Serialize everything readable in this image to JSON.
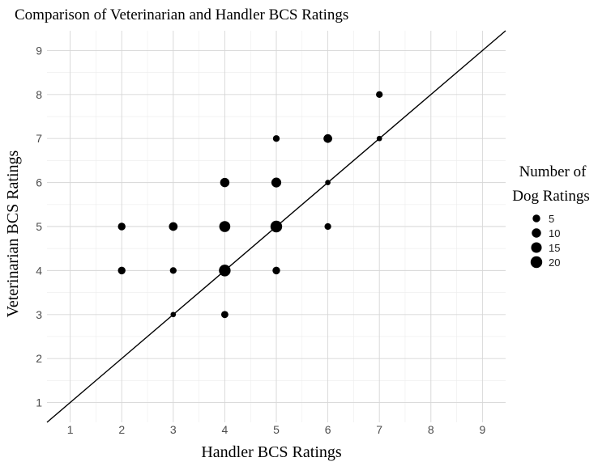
{
  "chart_data": {
    "type": "scatter",
    "title": "Comparison of Veterinarian and Handler BCS Ratings",
    "xlabel": "Handler BCS Ratings",
    "ylabel": "Veterinarian BCS Ratings",
    "xlim": [
      0.55,
      9.45
    ],
    "ylim": [
      0.55,
      9.45
    ],
    "xticks": [
      1,
      2,
      3,
      4,
      5,
      6,
      7,
      8,
      9
    ],
    "yticks": [
      1,
      2,
      3,
      4,
      5,
      6,
      7,
      8,
      9
    ],
    "grid": true,
    "reference_line": {
      "type": "identity",
      "slope": 1,
      "intercept": 0
    },
    "size_legend": {
      "title_lines": [
        "Number of",
        "Dog Ratings"
      ],
      "values": [
        5,
        10,
        15,
        20
      ],
      "placement": "right"
    },
    "points": [
      {
        "x": 2,
        "y": 4,
        "count": 5
      },
      {
        "x": 2,
        "y": 5,
        "count": 5
      },
      {
        "x": 3,
        "y": 3,
        "count": 1
      },
      {
        "x": 3,
        "y": 4,
        "count": 3
      },
      {
        "x": 3,
        "y": 5,
        "count": 8
      },
      {
        "x": 4,
        "y": 3,
        "count": 4
      },
      {
        "x": 4,
        "y": 4,
        "count": 20
      },
      {
        "x": 4,
        "y": 5,
        "count": 17
      },
      {
        "x": 4,
        "y": 6,
        "count": 10
      },
      {
        "x": 5,
        "y": 4,
        "count": 5
      },
      {
        "x": 5,
        "y": 5,
        "count": 20
      },
      {
        "x": 5,
        "y": 6,
        "count": 12
      },
      {
        "x": 5,
        "y": 7,
        "count": 3
      },
      {
        "x": 6,
        "y": 5,
        "count": 3
      },
      {
        "x": 6,
        "y": 6,
        "count": 1
      },
      {
        "x": 6,
        "y": 7,
        "count": 8
      },
      {
        "x": 7,
        "y": 7,
        "count": 1
      },
      {
        "x": 7,
        "y": 8,
        "count": 3
      }
    ]
  }
}
